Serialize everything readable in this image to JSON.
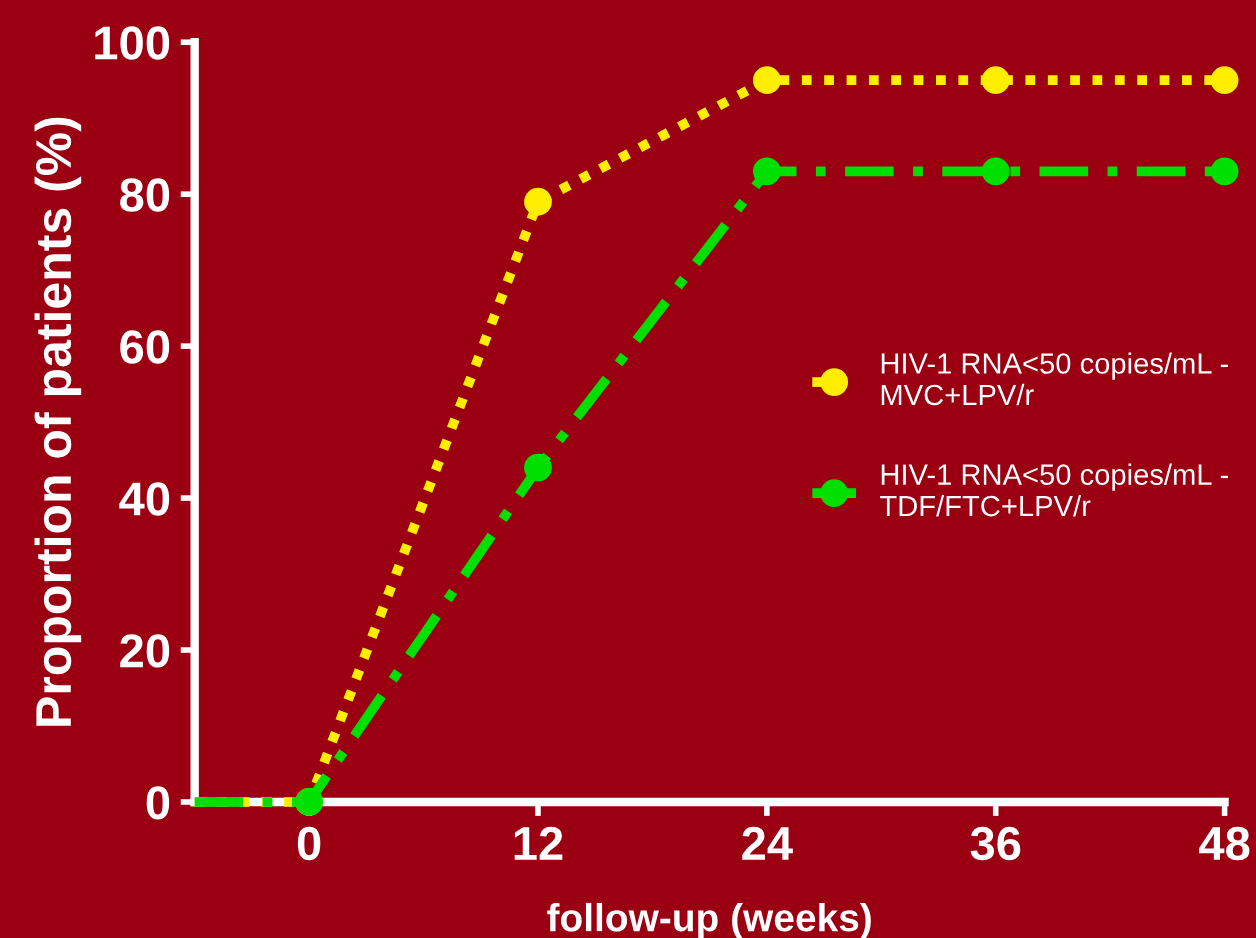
{
  "chart_data": {
    "type": "line",
    "xlabel": "follow-up (weeks)",
    "ylabel": "Proportion of patients (%)",
    "x": [
      -6,
      0,
      12,
      24,
      36,
      48
    ],
    "xlim": [
      -6,
      48
    ],
    "xticks": [
      0,
      12,
      24,
      36,
      48
    ],
    "ylim": [
      0,
      100
    ],
    "yticks": [
      0,
      20,
      40,
      60,
      80,
      100
    ],
    "grid": false,
    "legend": "right",
    "marker": "circle",
    "series": [
      {
        "name": "HIV-1 RNA<50 copies/mL -\nMVC+LPV/r",
        "color": "#ffee00",
        "line_style": "dotted",
        "values": [
          0,
          0,
          79,
          95,
          95,
          95
        ]
      },
      {
        "name": "HIV-1 RNA<50 copies/mL -\nTDF/FTC+LPV/r",
        "color": "#00e000",
        "line_style": "dashed",
        "values": [
          0,
          0,
          44,
          83,
          83,
          83
        ]
      }
    ]
  }
}
